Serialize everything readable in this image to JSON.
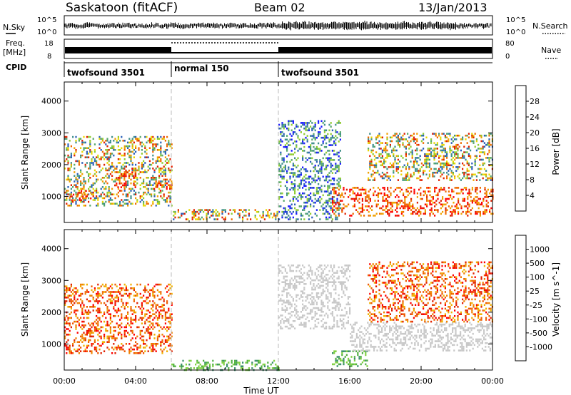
{
  "header": {
    "station": "Saskatoon (fitACF)",
    "beam": "Beam 02",
    "date": "13/Jan/2013"
  },
  "panels": {
    "nsky": {
      "left_label": "N.Sky",
      "right_label": "N.Search",
      "left_ticks": [
        "10^5",
        "10^0"
      ],
      "right_ticks": [
        "10^5",
        "10^0"
      ]
    },
    "freq": {
      "left_label_top": "Freq.",
      "left_label_unit": "[MHz]",
      "right_label": "Nave",
      "left_ticks": [
        "18",
        "8"
      ],
      "right_ticks": [
        "80",
        "0"
      ]
    },
    "cpid": {
      "label": "CPID",
      "segments": [
        {
          "name": "twofsound 3501",
          "start_h": 0,
          "end_h": 6
        },
        {
          "name": "normal 150",
          "start_h": 6,
          "end_h": 12
        },
        {
          "name": "twofsound 3501",
          "start_h": 12,
          "end_h": 24
        }
      ]
    }
  },
  "axes": {
    "xlabel": "Time UT",
    "x_ticks": [
      "00:00",
      "04:00",
      "08:00",
      "12:00",
      "16:00",
      "20:00",
      "00:00"
    ],
    "ylabel": "Slant Range [km]",
    "y_ticks": [
      "1000",
      "2000",
      "3000",
      "4000"
    ]
  },
  "colorbars": {
    "power": {
      "label": "Power [dB]",
      "ticks": [
        "4",
        "8",
        "12",
        "16",
        "20",
        "24",
        "28"
      ],
      "colors": [
        "#1a1aff",
        "#2a5fb8",
        "#3f8f8a",
        "#56a86a",
        "#8fcc30",
        "#e8d800",
        "#f0a000",
        "#ee6a00",
        "#e02000",
        "#ff0000"
      ]
    },
    "velocity": {
      "label": "Velocity [m s^-1]",
      "ticks": [
        "1000",
        "500",
        "100",
        "25",
        "-25",
        "-100",
        "-500",
        "-1000"
      ],
      "colors": [
        "#1a3fbf",
        "#2a6aa8",
        "#3a8f6a",
        "#4fb040",
        "#7fd040",
        "#c8c8c8",
        "#f0b000",
        "#f08000",
        "#ee5a00",
        "#e02000",
        "#ff0000"
      ]
    }
  },
  "chart_data": {
    "type": "heatmap",
    "title": "Saskatoon (fitACF)",
    "x_range_hours": [
      0,
      24
    ],
    "y_range_km": [
      180,
      4600
    ],
    "xlabel": "Time UT",
    "ylabel": "Slant Range [km]",
    "mode_change_hours": [
      6,
      12
    ],
    "power_regions": [
      {
        "t0": 0.0,
        "t1": 6.0,
        "r0": 700,
        "r1": 2900,
        "level": "mixed"
      },
      {
        "t0": 0.3,
        "t1": 1.5,
        "r0": 900,
        "r1": 1200,
        "level": "high"
      },
      {
        "t0": 2.8,
        "t1": 4.0,
        "r0": 1300,
        "r1": 1900,
        "level": "high"
      },
      {
        "t0": 5.0,
        "t1": 6.0,
        "r0": 1200,
        "r1": 1500,
        "level": "high"
      },
      {
        "t0": 6.0,
        "t1": 12.0,
        "r0": 250,
        "r1": 600,
        "level": "mixed"
      },
      {
        "t0": 12.0,
        "t1": 15.5,
        "r0": 250,
        "r1": 3400,
        "level": "low"
      },
      {
        "t0": 15.0,
        "t1": 24.0,
        "r0": 400,
        "r1": 1300,
        "level": "high"
      },
      {
        "t0": 17.0,
        "t1": 24.0,
        "r0": 1500,
        "r1": 3000,
        "level": "mixed"
      }
    ],
    "velocity_regions": [
      {
        "t0": 0.0,
        "t1": 6.0,
        "r0": 700,
        "r1": 2900,
        "level": "negative"
      },
      {
        "t0": 6.0,
        "t1": 12.0,
        "r0": 200,
        "r1": 500,
        "level": "positive"
      },
      {
        "t0": 12.0,
        "t1": 16.0,
        "r0": 1500,
        "r1": 3500,
        "level": "near-zero"
      },
      {
        "t0": 15.0,
        "t1": 17.0,
        "r0": 300,
        "r1": 800,
        "level": "positive"
      },
      {
        "t0": 16.0,
        "t1": 24.0,
        "r0": 800,
        "r1": 1700,
        "level": "near-zero"
      },
      {
        "t0": 17.0,
        "t1": 24.0,
        "r0": 1700,
        "r1": 3600,
        "level": "negative"
      }
    ]
  }
}
